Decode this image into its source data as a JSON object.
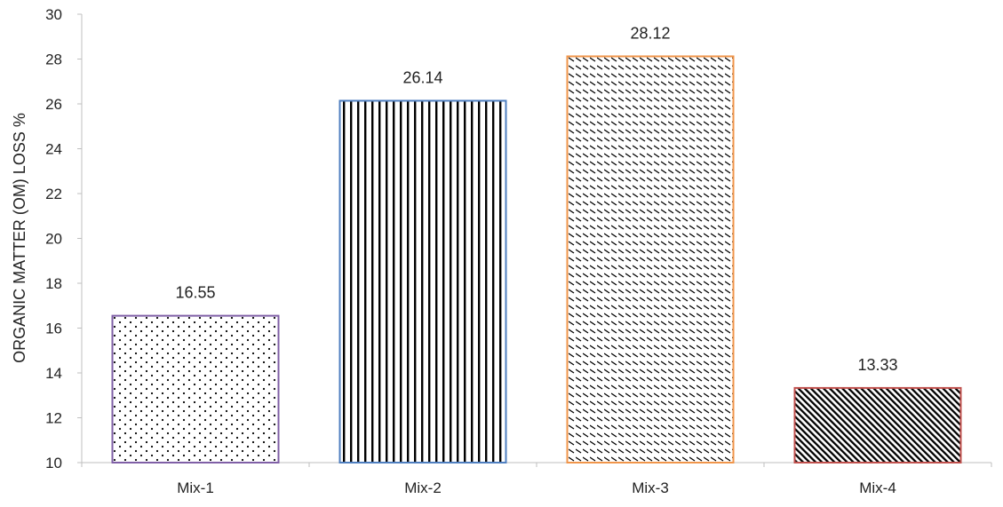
{
  "chart_data": {
    "type": "bar",
    "title": "",
    "xlabel": "",
    "ylabel": "ORGANIC MATTER (OM) LOSS %",
    "ylim": [
      10,
      30
    ],
    "yticks": [
      10,
      12,
      14,
      16,
      18,
      20,
      22,
      24,
      26,
      28,
      30
    ],
    "grid": false,
    "legend": "none",
    "categories": [
      "Mix-1",
      "Mix-2",
      "Mix-3",
      "Mix-4"
    ],
    "values": [
      16.55,
      26.14,
      28.12,
      13.33
    ],
    "value_labels": [
      "16.55",
      "26.14",
      "28.12",
      "13.33"
    ],
    "bar_styles": [
      {
        "pattern": "dots",
        "edge_color": "#7f5fa6"
      },
      {
        "pattern": "vertical-lines",
        "edge_color": "#4f7fc0"
      },
      {
        "pattern": "small-diagonal-dashes",
        "edge_color": "#f0954a"
      },
      {
        "pattern": "dense-diagonal-lines",
        "edge_color": "#c0504d"
      }
    ],
    "axis_color": "#bfbfbf"
  }
}
